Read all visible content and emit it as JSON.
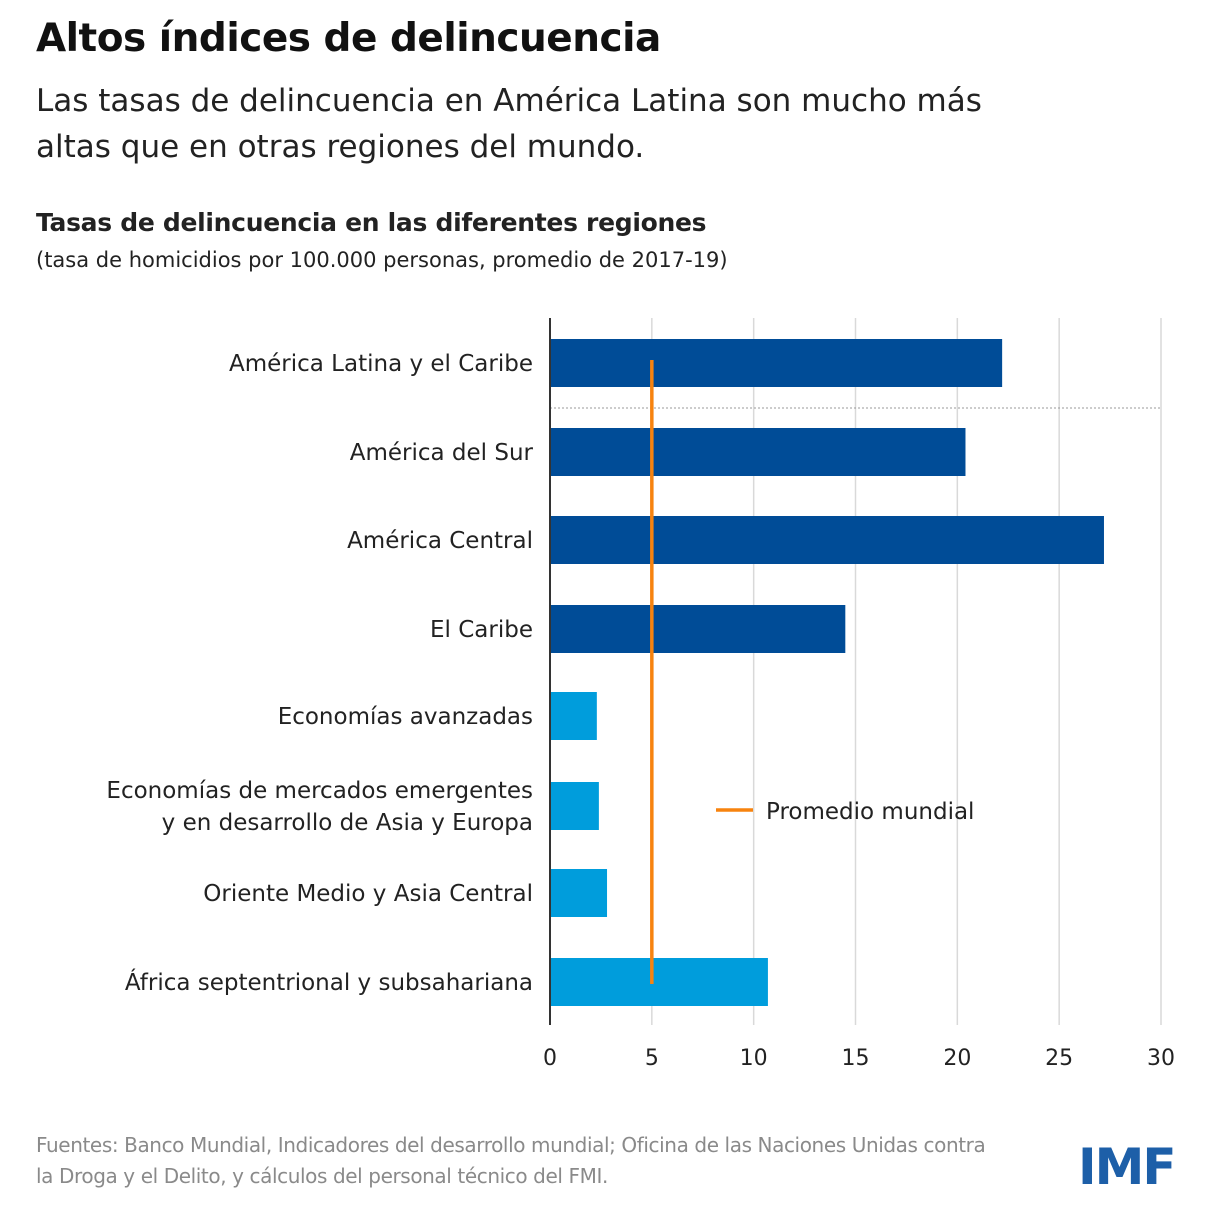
{
  "title": "Altos índices de delincuencia",
  "subtitle": "Las tasas de delincuencia en América Latina son mucho más altas que en otras regiones del mundo.",
  "source": "Fuentes: Banco Mundial, Indicadores del desarrollo mundial; Oficina de las Naciones Unidas contra la Droga y el Delito, y cálculos del personal técnico del FMI.",
  "logo": "IMF",
  "chart_data": {
    "type": "bar",
    "orientation": "horizontal",
    "title": "Tasas de delincuencia en las diferentes regiones",
    "subtitle": "(tasa de homicidios por 100.000 personas, promedio de 2017-19)",
    "categories": [
      [
        "América Latina y el Caribe"
      ],
      [
        "América del Sur"
      ],
      [
        "América Central"
      ],
      [
        "El Caribe"
      ],
      [
        "Economías avanzadas"
      ],
      [
        "Economías de mercados emergentes",
        "y en desarrollo de Asia y Europa"
      ],
      [
        "Oriente Medio y Asia Central"
      ],
      [
        "África septentrional y subsahariana"
      ]
    ],
    "values": [
      22.2,
      20.4,
      27.2,
      14.5,
      2.3,
      2.4,
      2.8,
      10.7
    ],
    "bar_colors": [
      "#004c97",
      "#004c97",
      "#004c97",
      "#004c97",
      "#009ddc",
      "#009ddc",
      "#009ddc",
      "#009ddc"
    ],
    "reference_line": {
      "name": "Promedio mundial",
      "value": 5,
      "color": "#f7830f"
    },
    "xlim": [
      0,
      30
    ],
    "xticks": [
      0,
      5,
      10,
      15,
      20,
      25,
      30
    ],
    "grid": true,
    "legend": "inside right"
  }
}
